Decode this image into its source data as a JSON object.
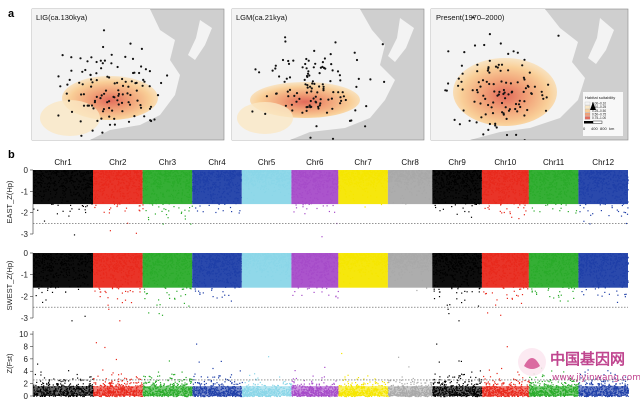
{
  "panel_a": {
    "letter": "a",
    "maps": [
      {
        "title": "LIG(ca.130kya)"
      },
      {
        "title": "LGM(ca.21kya)"
      },
      {
        "title": "Present(1970–2000)"
      }
    ],
    "legend": {
      "title": "Habitat suitability",
      "classes": [
        "0.00–0.10",
        "0.10–0.25",
        "0.25–0.50",
        "0.50–0.75",
        "0.75–1.00"
      ],
      "colors": [
        "#f4f4f4",
        "#fae7c4",
        "#f9cf98",
        "#f1a077",
        "#e26a5a"
      ]
    },
    "scalebar": {
      "labels": [
        "0",
        "400",
        "800"
      ],
      "unit": "km"
    }
  },
  "panel_b": {
    "letter": "b",
    "chromosomes": [
      "Chr1",
      "Chr2",
      "Chr3",
      "Chr4",
      "Chr5",
      "Chr6",
      "Chr7",
      "Chr8",
      "Chr9",
      "Chr10",
      "Chr11",
      "Chr12"
    ],
    "chr_colors": [
      "#000000",
      "#e8291c",
      "#2aab2a",
      "#1f3fa8",
      "#8ad6e8",
      "#a64bc9",
      "#f5e600",
      "#a9a9a9",
      "#000000",
      "#e8291c",
      "#2aab2a",
      "#1f3fa8"
    ],
    "tracks": [
      {
        "ylabel": "EAST_Z(Hp)",
        "yticks": [
          "0",
          "-1",
          "-2",
          "-3"
        ]
      },
      {
        "ylabel": "SWEST_Z(Hp)",
        "yticks": [
          "0",
          "-1",
          "-2",
          "-3"
        ]
      },
      {
        "ylabel": "Z(Fst)",
        "yticks": [
          "10",
          "8",
          "6",
          "4",
          "2",
          "0"
        ]
      }
    ]
  },
  "watermark": {
    "cn": "中国基因网",
    "url": "www.jiyinwang.com"
  }
}
